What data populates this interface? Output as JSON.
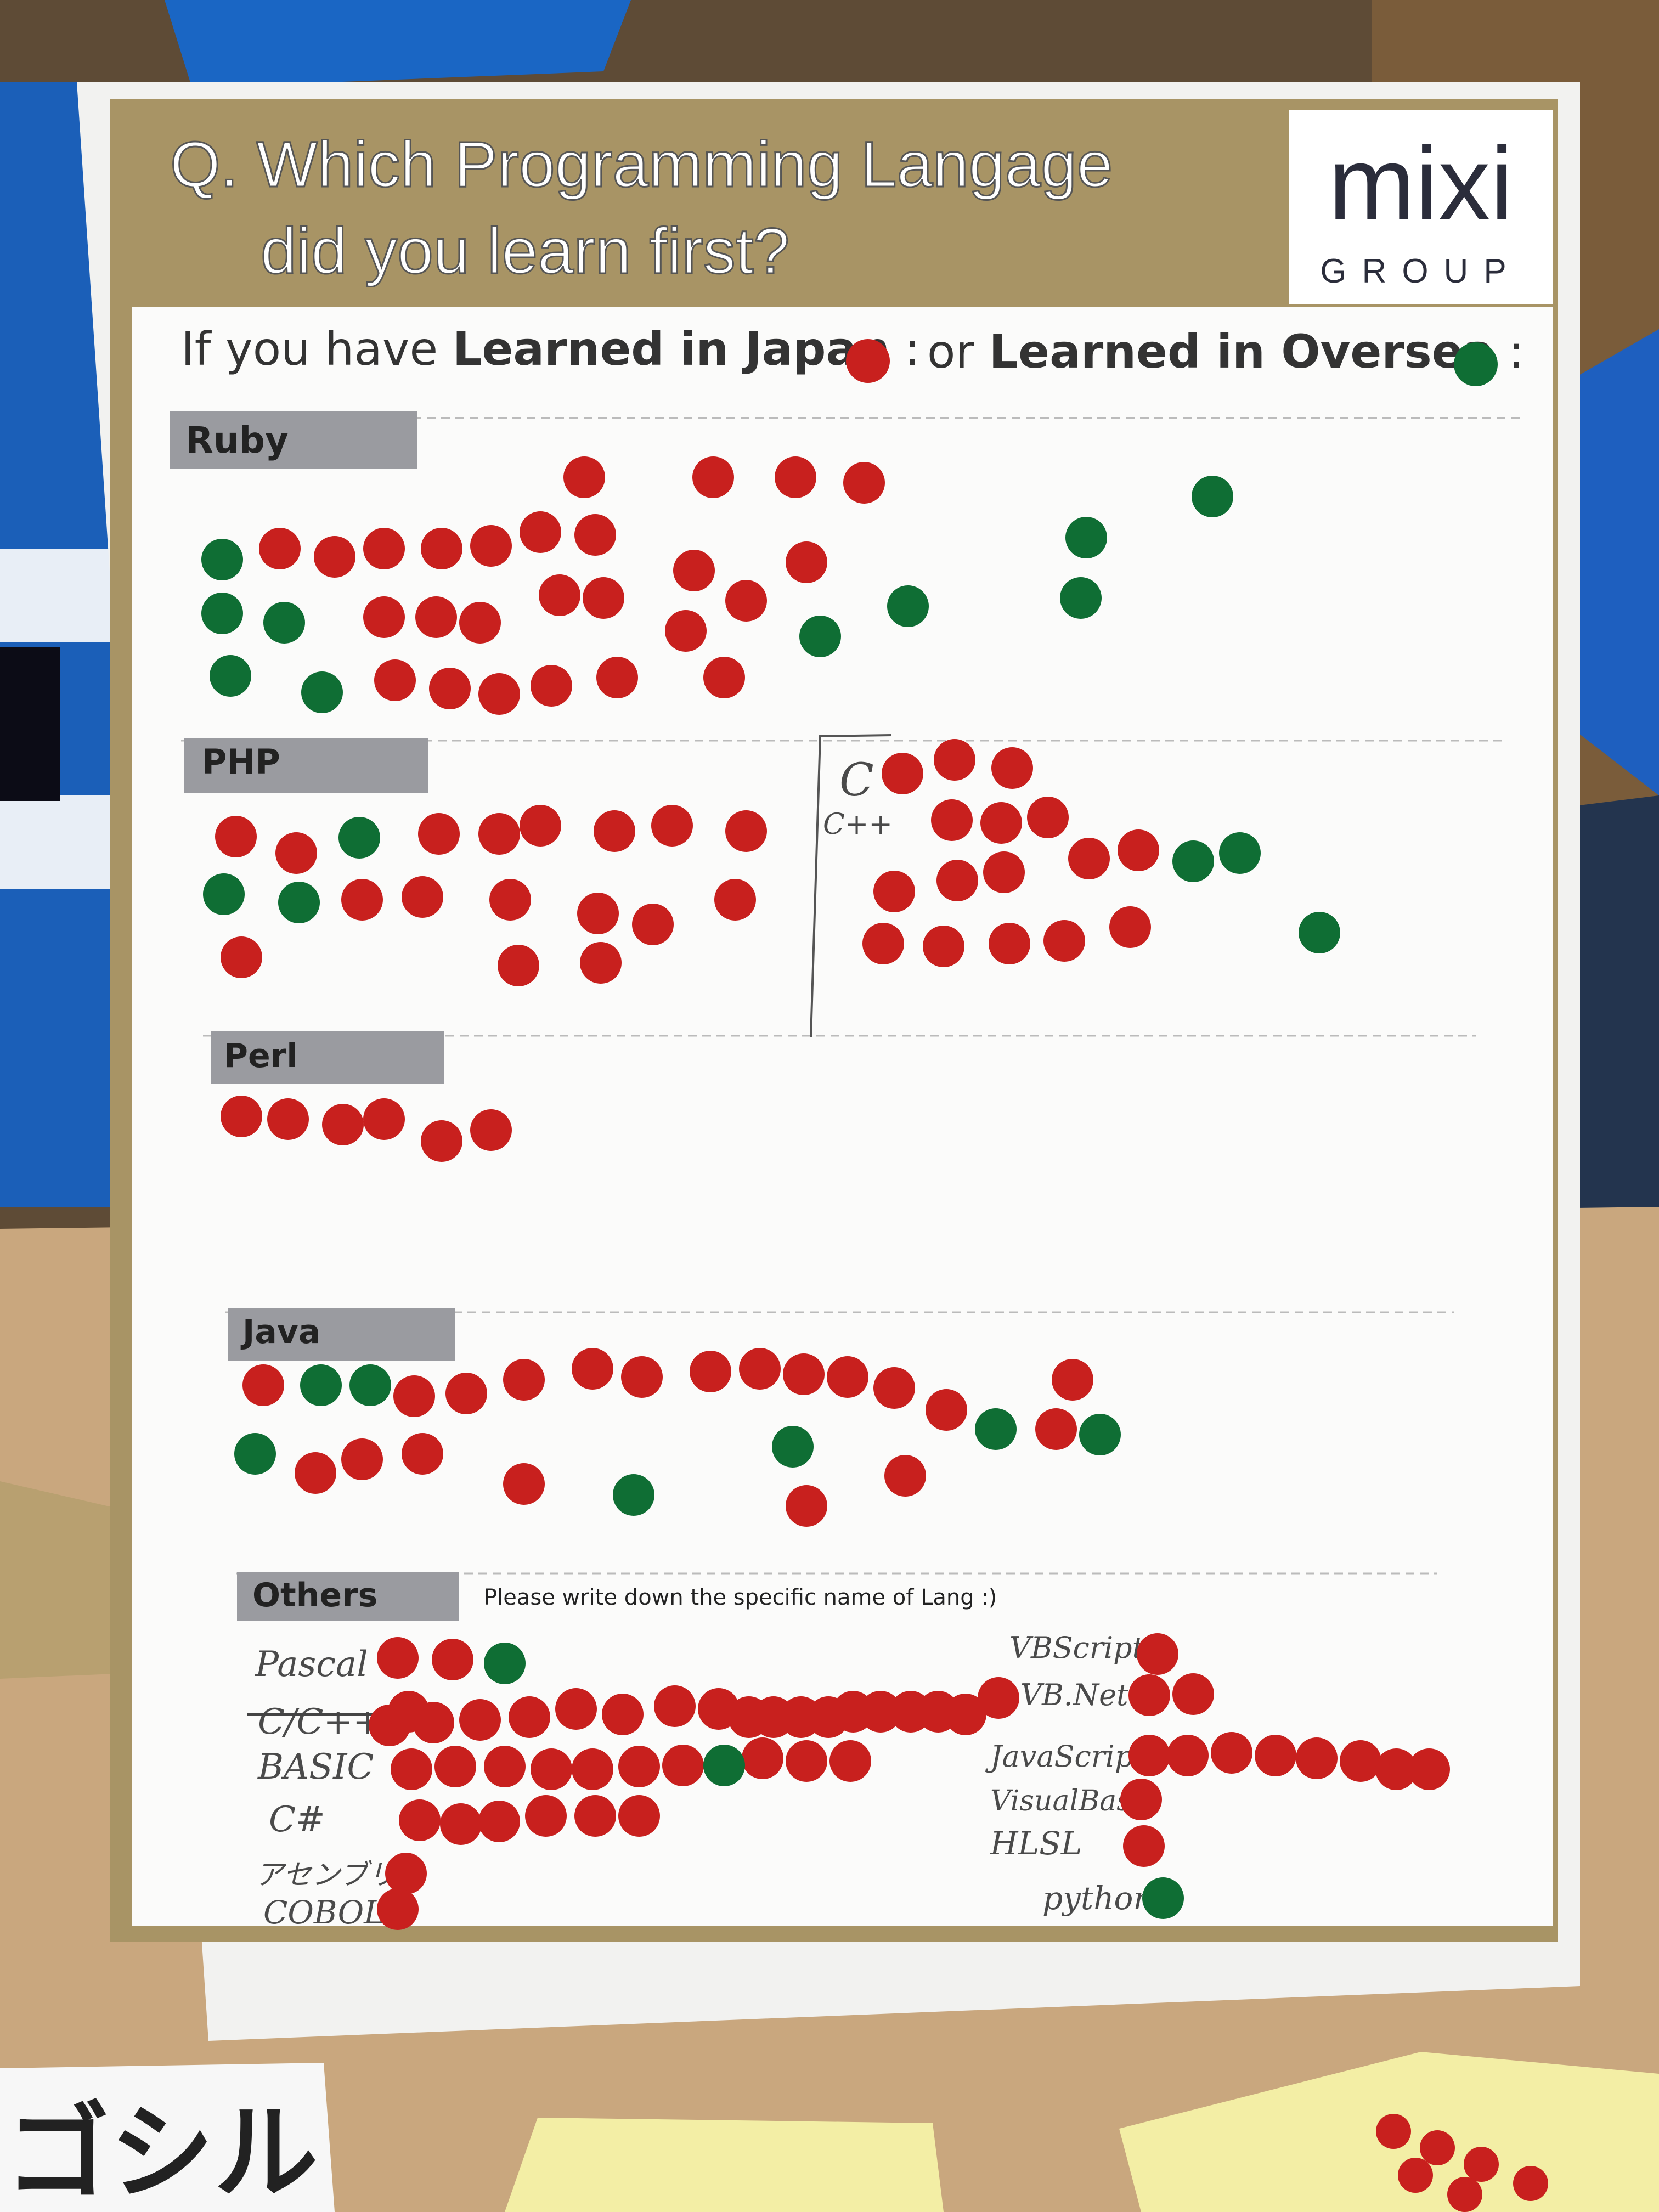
{
  "poster": {
    "question_line1": "Q. Which Programming Langage",
    "question_line2": "did you learn first?",
    "logo_main": "mixi",
    "logo_sub": "GROUP",
    "legend": {
      "prefix": "If you have ",
      "japan": "Learned in Japan",
      "sep": " or ",
      "oversea": "Learned in Oversea",
      "colon": " :"
    },
    "colors": {
      "japan": "#c8201e",
      "oversea": "#0f6e34",
      "band": "#a89465",
      "label_bg": "#9a9ba0"
    },
    "sections": {
      "ruby": "Ruby",
      "php": "PHP",
      "perl": "Perl",
      "java": "Java",
      "others": "Others",
      "others_note": "Please write down the specific name of Lang :)"
    },
    "handwritten": {
      "c": "C",
      "cpp": "C++",
      "pascal": "Pascal",
      "c_cpp": "C/C++",
      "basic": "BASIC",
      "csharp": "C#",
      "assembly": "アセンブリ",
      "cobol": "COBOL",
      "vbscript": "VBScript",
      "vbnet": "VB.Net",
      "javascript": "JavaScript",
      "visualbasic": "VisualBasic",
      "hlsl": "HLSL",
      "python": "python"
    }
  },
  "foreground": {
    "card_text": "ゴシル"
  }
}
